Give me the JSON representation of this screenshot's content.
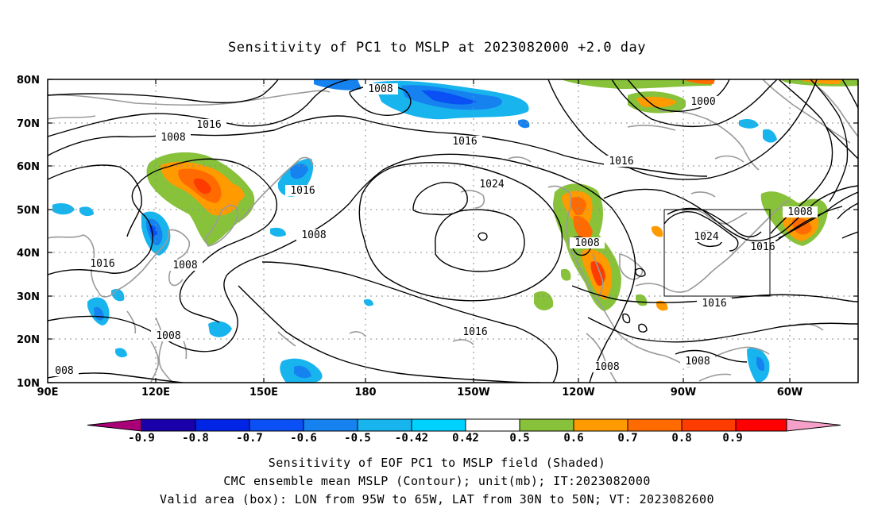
{
  "title": "Sensitivity of PC1 to MSLP at 2023082000 +2.0 day",
  "axes": {
    "lat_labels": [
      "80N",
      "70N",
      "60N",
      "50N",
      "40N",
      "30N",
      "20N",
      "10N"
    ],
    "lon_labels": [
      "90E",
      "120E",
      "150E",
      "180",
      "150W",
      "120W",
      "90W",
      "60W"
    ]
  },
  "contours": [
    {
      "id": "c1",
      "label": "1008"
    },
    {
      "id": "c2",
      "label": "1016"
    },
    {
      "id": "c3",
      "label": "1008"
    },
    {
      "id": "c4",
      "label": "1016"
    },
    {
      "id": "c5",
      "label": "1024"
    },
    {
      "id": "c6",
      "label": "1016"
    },
    {
      "id": "c7",
      "label": "1000"
    },
    {
      "id": "c8",
      "label": "1016"
    },
    {
      "id": "c9",
      "label": "1008"
    },
    {
      "id": "c10",
      "label": "1016"
    },
    {
      "id": "c11",
      "label": "1008"
    },
    {
      "id": "c12",
      "label": "1008"
    },
    {
      "id": "c13",
      "label": "1008"
    },
    {
      "id": "c14",
      "label": "1008"
    },
    {
      "id": "c15",
      "label": "1024"
    },
    {
      "id": "c16",
      "label": "1016"
    },
    {
      "id": "c17",
      "label": "1016"
    },
    {
      "id": "c18",
      "label": "1016"
    },
    {
      "id": "c19",
      "label": "1008"
    },
    {
      "id": "c20",
      "label": "1008"
    },
    {
      "id": "c21",
      "label": "008"
    }
  ],
  "valid_box": {
    "lon_from": "95W",
    "lon_to": "65W",
    "lat_from": "30N",
    "lat_to": "50N"
  },
  "colorbar": {
    "colors": [
      "#aa0077",
      "#1a00aa",
      "#0024e6",
      "#0a50f5",
      "#1582f0",
      "#18b4ee",
      "#00d2ff",
      "#ffffff",
      "#88c23a",
      "#ff9a00",
      "#ff6b00",
      "#ff3c00",
      "#ff0000",
      "#f5a0c8"
    ],
    "labels": [
      "-0.9",
      "-0.8",
      "-0.7",
      "-0.6",
      "-0.5",
      "-0.42",
      "0.42",
      "0.5",
      "0.6",
      "0.7",
      "0.8",
      "0.9"
    ]
  },
  "captions": {
    "line1": "Sensitivity of EOF PC1 to MSLP field (Shaded)",
    "line2": "CMC ensemble mean MSLP (Contour); unit(mb); IT:2023082000",
    "line3": "Valid area (box): LON from 95W to 65W, LAT from 30N to 50N; VT: 2023082600"
  }
}
